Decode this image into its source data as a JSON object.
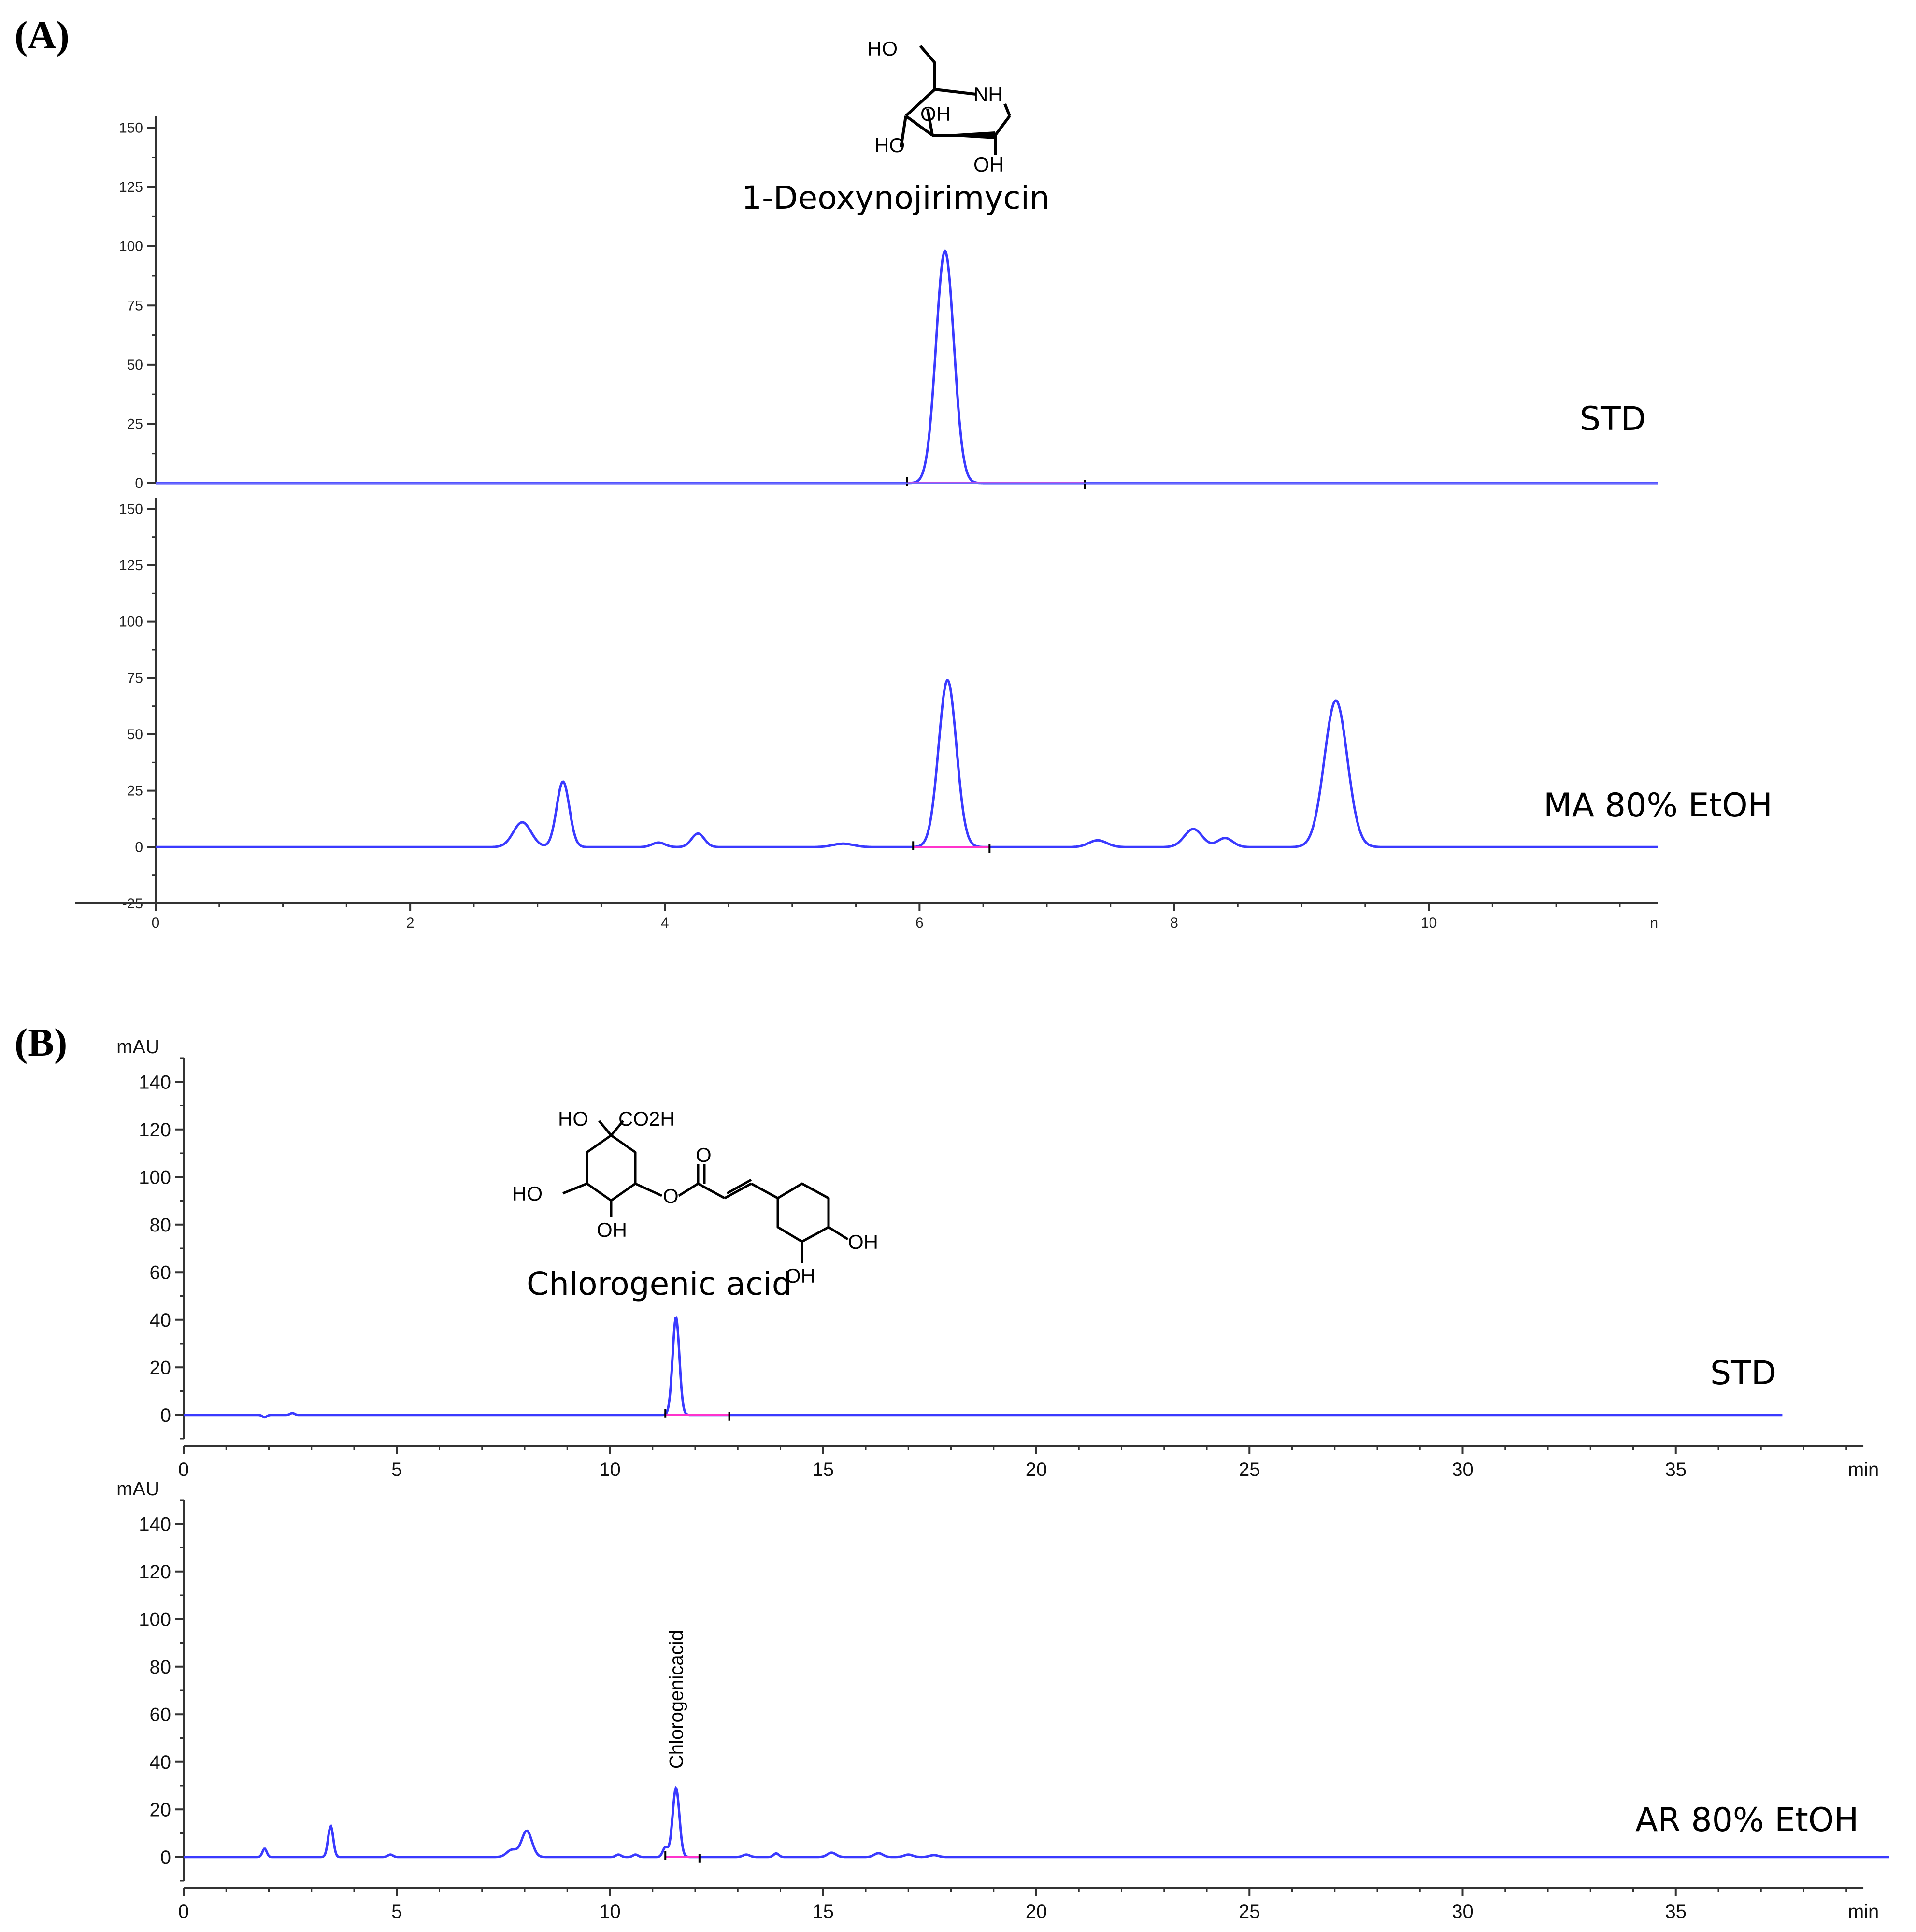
{
  "panels": {
    "a_label": "(A)",
    "b_label": "(B)"
  },
  "structures": {
    "dnj": {
      "name": "1-Deoxynojirimycin",
      "atoms": [
        "HO",
        "NH",
        "OH",
        "HO",
        "OH"
      ]
    },
    "cga": {
      "name": "Chlorogenic acid",
      "atoms": [
        "HO",
        "CO2H",
        "O",
        "HO",
        "OH",
        "O",
        "OH",
        "OH"
      ]
    }
  },
  "colors": {
    "trace": "#3a3aff",
    "trace_light": "#6b6bff",
    "baseline_marker": "#ff33cc",
    "axis": "#333333"
  },
  "chart_data": [
    {
      "type": "line",
      "id": "A",
      "xlim": [
        0,
        11.8
      ],
      "x_ticks": [
        0,
        2,
        4,
        6,
        8,
        10
      ],
      "x_unit_fragment": "n",
      "y_ticks": [
        -25,
        0,
        25,
        50,
        75,
        100,
        125,
        150
      ],
      "series": [
        {
          "name": "STD",
          "ylim": [
            0,
            155
          ],
          "peaks": [
            [
              6.2,
              98,
              0.07
            ]
          ],
          "x_range": [
            0,
            11.8
          ]
        },
        {
          "name": "MA 80% EtOH",
          "ylim": [
            -25,
            155
          ],
          "peaks": [
            [
              2.88,
              11,
              0.07
            ],
            [
              3.2,
              29,
              0.05
            ],
            [
              3.95,
              2,
              0.05
            ],
            [
              4.26,
              6,
              0.05
            ],
            [
              5.4,
              1.5,
              0.08
            ],
            [
              6.22,
              74,
              0.07
            ],
            [
              7.4,
              3,
              0.07
            ],
            [
              8.15,
              8,
              0.07
            ],
            [
              8.4,
              4,
              0.06
            ],
            [
              9.27,
              65,
              0.09
            ]
          ],
          "x_range": [
            0,
            11.8
          ]
        }
      ]
    },
    {
      "type": "line",
      "id": "B",
      "xlim": [
        0,
        40
      ],
      "x_ticks": [
        0,
        5,
        10,
        15,
        20,
        25,
        30,
        35
      ],
      "xlabel": "min",
      "ylabel": "mAU",
      "y_ticks": [
        0,
        20,
        40,
        60,
        80,
        100,
        120,
        140
      ],
      "series": [
        {
          "name": "STD",
          "ylim": [
            -10,
            150
          ],
          "peaks": [
            [
              1.9,
              -1,
              0.05
            ],
            [
              2.55,
              0.8,
              0.05
            ],
            [
              11.55,
              41,
              0.08
            ]
          ],
          "x_range": [
            0,
            37.5
          ]
        },
        {
          "name": "AR 80% EtOH",
          "ylim": [
            -10,
            150
          ],
          "peaks": [
            [
              1.9,
              3.5,
              0.05
            ],
            [
              3.45,
              13,
              0.06
            ],
            [
              4.85,
              1,
              0.06
            ],
            [
              7.7,
              3,
              0.12
            ],
            [
              8.05,
              11,
              0.12
            ],
            [
              10.2,
              1,
              0.06
            ],
            [
              10.6,
              1,
              0.06
            ],
            [
              11.3,
              4,
              0.06
            ],
            [
              11.55,
              29,
              0.08
            ],
            [
              13.2,
              1,
              0.08
            ],
            [
              13.9,
              1.5,
              0.06
            ],
            [
              15.2,
              1.8,
              0.1
            ],
            [
              16.3,
              1.6,
              0.1
            ],
            [
              17,
              1,
              0.1
            ],
            [
              17.6,
              0.8,
              0.1
            ]
          ],
          "x_range": [
            0,
            40
          ],
          "peak_label": {
            "text": "Chlorogenicacid",
            "x": 11.55
          }
        }
      ]
    }
  ],
  "trace_labels": {
    "a_top": "STD",
    "a_bottom": "MA 80% EtOH",
    "b_top": "STD",
    "b_bottom": "AR 80% EtOH"
  }
}
